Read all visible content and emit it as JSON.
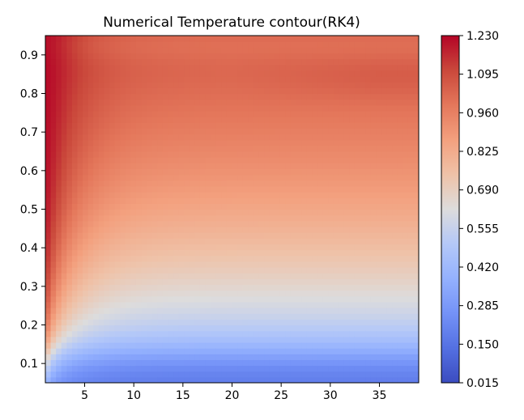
{
  "chart_data": {
    "type": "heatmap",
    "subtype": "filled-contour",
    "title": "Numerical Temperature contour(RK4)",
    "xlabel": "",
    "ylabel": "",
    "xlim": [
      1,
      39
    ],
    "ylim": [
      0.05,
      0.95
    ],
    "x_ticks": [
      5,
      10,
      15,
      20,
      25,
      30,
      35
    ],
    "x_tick_labels": [
      "5",
      "10",
      "15",
      "20",
      "25",
      "30",
      "35"
    ],
    "y_ticks": [
      0.1,
      0.2,
      0.3,
      0.4,
      0.5,
      0.6,
      0.7,
      0.8,
      0.9
    ],
    "y_tick_labels": [
      "0.1",
      "0.2",
      "0.3",
      "0.4",
      "0.5",
      "0.6",
      "0.7",
      "0.8",
      "0.9"
    ],
    "colormap": "coolwarm",
    "colorbar": {
      "min": 0.015,
      "max": 1.23,
      "ticks": [
        0.015,
        0.15,
        0.285,
        0.42,
        0.555,
        0.69,
        0.825,
        0.96,
        1.095,
        1.23
      ],
      "tick_labels": [
        "0.015",
        "0.150",
        "0.285",
        "0.420",
        "0.555",
        "0.690",
        "0.825",
        "0.960",
        "1.095",
        "1.230"
      ]
    },
    "grid": false,
    "colors": {
      "low": "#3b4cc0",
      "mid": "#dddcdc",
      "high": "#b40426"
    }
  }
}
